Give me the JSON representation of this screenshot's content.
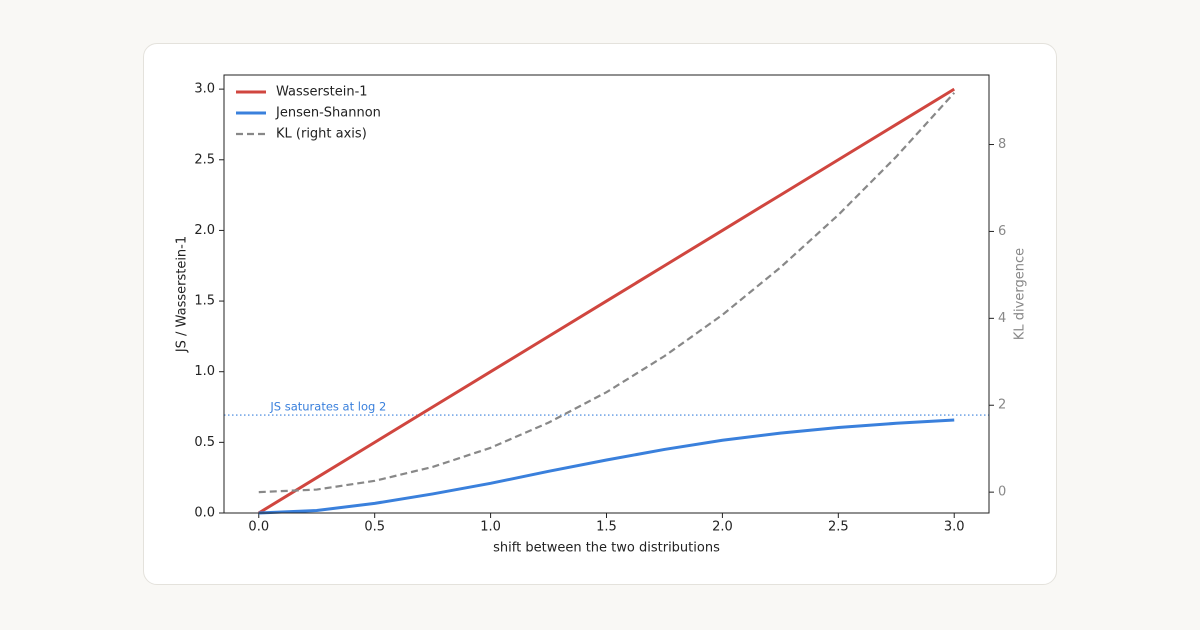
{
  "chart_data": {
    "type": "line",
    "xlabel": "shift between the two distributions",
    "ylabel": "JS  /  Wasserstein-1",
    "y2label": "KL divergence",
    "x": [
      0,
      0.25,
      0.5,
      0.75,
      1.0,
      1.25,
      1.5,
      1.75,
      2.0,
      2.25,
      2.5,
      2.75,
      3.0
    ],
    "series": [
      {
        "name": "Wasserstein-1",
        "color": "#d0463f",
        "dash": "solid",
        "values": [
          0,
          0.25,
          0.5,
          0.75,
          1.0,
          1.25,
          1.5,
          1.75,
          2.0,
          2.25,
          2.5,
          2.75,
          3.0
        ]
      },
      {
        "name": "Jensen-Shannon",
        "color": "#3a80dc",
        "dash": "solid",
        "values": [
          0,
          0.018,
          0.068,
          0.135,
          0.21,
          0.295,
          0.375,
          0.45,
          0.515,
          0.565,
          0.605,
          0.635,
          0.658
        ]
      },
      {
        "name": "KL (right axis)",
        "color": "#888888",
        "dash": "dashed",
        "axis": "y2",
        "values": [
          0,
          0.06,
          0.26,
          0.58,
          1.02,
          1.6,
          2.3,
          3.13,
          4.08,
          5.17,
          6.38,
          7.72,
          9.19
        ]
      }
    ],
    "reference_line": {
      "value": 0.693,
      "label": "JS saturates at log 2",
      "label_x": 0.05,
      "color": "#3a80dc"
    },
    "xlim": [
      -0.15,
      3.15
    ],
    "xticks": [
      {
        "value": 0,
        "label": "0.0"
      },
      0.5,
      {
        "value": 1,
        "label": "1.0"
      },
      1.5,
      {
        "value": 2,
        "label": "2.0"
      },
      2.5,
      {
        "value": 3,
        "label": "3.0"
      }
    ],
    "ylim": [
      0,
      3.1
    ],
    "yticks": [
      {
        "value": 0,
        "label": "0.0"
      },
      0.5,
      {
        "value": 1,
        "label": "1.0"
      },
      1.5,
      {
        "value": 2,
        "label": "2.0"
      },
      2.5,
      {
        "value": 3,
        "label": "3.0"
      }
    ],
    "y2lim": [
      -0.48,
      9.6
    ],
    "y2ticks": [
      0,
      2,
      4,
      6,
      8
    ],
    "y2color": "#888888",
    "legend": "upper left",
    "grid": false
  }
}
